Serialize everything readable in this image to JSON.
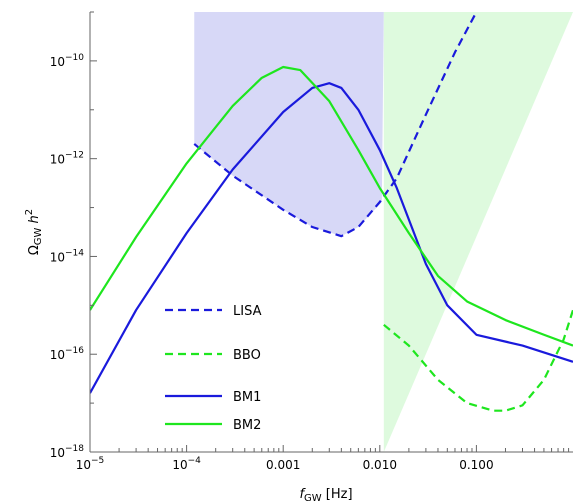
{
  "chart_data": {
    "type": "line",
    "x_scale": "log",
    "y_scale": "log",
    "xlim": [
      1e-05,
      1
    ],
    "ylim": [
      1e-18,
      1e-09
    ],
    "xlabel": {
      "main": "f",
      "sub": "GW",
      "unit": " [Hz]"
    },
    "ylabel": {
      "main": "Ω",
      "sub": "GW",
      "rest": " h",
      "sup": "2"
    },
    "x_ticks": [
      {
        "value": 1e-05,
        "base": "10",
        "exp": "−5"
      },
      {
        "value": 0.0001,
        "base": "10",
        "exp": "−4"
      },
      {
        "value": 0.001,
        "text": "0.001"
      },
      {
        "value": 0.01,
        "text": "0.010"
      },
      {
        "value": 0.1,
        "text": "0.100"
      }
    ],
    "y_ticks": [
      {
        "value": 1e-18,
        "base": "10",
        "exp": "−18"
      },
      {
        "value": 1e-16,
        "base": "10",
        "exp": "−16"
      },
      {
        "value": 1e-14,
        "base": "10",
        "exp": "−14"
      },
      {
        "value": 1e-12,
        "base": "10",
        "exp": "−12"
      },
      {
        "value": 1e-10,
        "base": "10",
        "exp": "−10"
      }
    ],
    "regions": [
      {
        "name": "LISA sensitivity region",
        "color": "#c9cbf4",
        "opacity": 0.75,
        "upper": [
          [
            0.00012,
            1e-09
          ],
          [
            0.011,
            1e-09
          ]
        ],
        "lower": [
          [
            0.00012,
            2e-12
          ],
          [
            0.0003,
            4.5e-13
          ],
          [
            0.001,
            9e-14
          ],
          [
            0.002,
            4e-14
          ],
          [
            0.004,
            2.6e-14
          ],
          [
            0.006,
            4e-14
          ],
          [
            0.0105,
            1.3e-13
          ]
        ]
      },
      {
        "name": "BBO sensitivity region",
        "color": "#ccf7cc",
        "opacity": 0.65,
        "upper": [
          [
            0.011,
            1e-09
          ],
          [
            1,
            1e-09
          ]
        ],
        "lower": [
          [
            0.011,
            1e-18
          ]
        ]
      }
    ],
    "series": [
      {
        "name": "LISA",
        "color": "#1a1adc",
        "dash": "8,5",
        "points": [
          [
            0.00012,
            2e-12
          ],
          [
            0.0003,
            4.5e-13
          ],
          [
            0.001,
            9e-14
          ],
          [
            0.002,
            4e-14
          ],
          [
            0.004,
            2.6e-14
          ],
          [
            0.006,
            4e-14
          ],
          [
            0.01,
            1.3e-13
          ],
          [
            0.015,
            4e-13
          ],
          [
            0.03,
            8e-12
          ],
          [
            0.06,
            1.5e-10
          ],
          [
            0.1,
            1e-09
          ]
        ]
      },
      {
        "name": "BBO",
        "color": "#1ee61e",
        "dash": "8,5",
        "points": [
          [
            0.011,
            4e-16
          ],
          [
            0.02,
            1.5e-16
          ],
          [
            0.04,
            3e-17
          ],
          [
            0.08,
            1e-17
          ],
          [
            0.15,
            7e-18
          ],
          [
            0.2,
            7e-18
          ],
          [
            0.3,
            9e-18
          ],
          [
            0.5,
            3e-17
          ],
          [
            0.8,
            2e-16
          ],
          [
            1,
            8e-16
          ]
        ]
      },
      {
        "name": "BM1",
        "color": "#1a1adc",
        "dash": "",
        "points": [
          [
            1e-05,
            1.6e-17
          ],
          [
            3e-05,
            8e-16
          ],
          [
            0.0001,
            3e-14
          ],
          [
            0.0003,
            6e-13
          ],
          [
            0.001,
            9e-12
          ],
          [
            0.002,
            2.8e-11
          ],
          [
            0.003,
            3.5e-11
          ],
          [
            0.004,
            2.8e-11
          ],
          [
            0.006,
            1e-11
          ],
          [
            0.01,
            1.5e-12
          ],
          [
            0.015,
            2.5e-13
          ],
          [
            0.03,
            7e-15
          ],
          [
            0.05,
            1e-15
          ],
          [
            0.1,
            2.5e-16
          ],
          [
            0.3,
            1.5e-16
          ],
          [
            1,
            7e-17
          ]
        ]
      },
      {
        "name": "BM2",
        "color": "#1ee61e",
        "dash": "",
        "points": [
          [
            1e-05,
            8e-16
          ],
          [
            3e-05,
            2.5e-14
          ],
          [
            0.0001,
            8e-13
          ],
          [
            0.0003,
            1.2e-11
          ],
          [
            0.0006,
            4.5e-11
          ],
          [
            0.001,
            7.5e-11
          ],
          [
            0.0015,
            6.5e-11
          ],
          [
            0.003,
            1.5e-11
          ],
          [
            0.006,
            1.5e-12
          ],
          [
            0.01,
            2.5e-13
          ],
          [
            0.02,
            3e-14
          ],
          [
            0.04,
            4e-15
          ],
          [
            0.08,
            1.2e-15
          ],
          [
            0.2,
            5e-16
          ],
          [
            0.5,
            2.5e-16
          ],
          [
            1,
            1.5e-16
          ]
        ]
      }
    ],
    "legend": {
      "placement": "lower-left",
      "entries": [
        "LISA",
        "BBO",
        "BM1",
        "BM2"
      ]
    }
  }
}
